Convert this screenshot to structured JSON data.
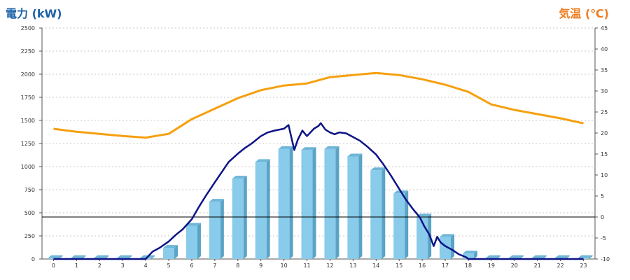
{
  "chart_data": {
    "type": "bar",
    "left_axis_title": "電力 (kW)",
    "right_axis_title": "気温 (℃)",
    "categories": [
      "0",
      "1",
      "2",
      "3",
      "4",
      "5",
      "6",
      "7",
      "8",
      "9",
      "10",
      "11",
      "12",
      "13",
      "14",
      "15",
      "16",
      "17",
      "18",
      "19",
      "20",
      "21",
      "22",
      "23"
    ],
    "ylim_left": [
      0,
      2500
    ],
    "yticks_left": [
      "0",
      "250",
      "500",
      "750",
      "1000",
      "1250",
      "1500",
      "1750",
      "2000",
      "2250",
      "2500"
    ],
    "ylim_right": [
      -10,
      45
    ],
    "yticks_right": [
      "-10",
      "-5",
      "0",
      "5",
      "10",
      "15",
      "20",
      "25",
      "30",
      "35",
      "40",
      "45"
    ],
    "grid": "horizontal dotted",
    "colors": {
      "bar_front": "#88cbea",
      "bar_side": "#5aa3c5",
      "bar_top": "#6fb6d8",
      "power_line": "#0d1486",
      "temperature_line": "#f5a00f",
      "left_title": "#1d62a7",
      "right_title": "#ee7d22",
      "zero_line": "#000000",
      "gridline": "#b8b8b8"
    },
    "series": [
      {
        "type": "bar",
        "axis": "left",
        "values": [
          10,
          10,
          10,
          10,
          10,
          120,
          360,
          620,
          870,
          1050,
          1190,
          1180,
          1190,
          1110,
          960,
          710,
          460,
          240,
          60,
          10,
          10,
          10,
          10,
          10
        ]
      },
      {
        "type": "line",
        "axis": "left",
        "x": [
          0,
          1,
          2,
          3,
          4,
          4.3,
          4.6,
          5,
          5.3,
          5.6,
          6,
          6.3,
          6.6,
          7,
          7.3,
          7.6,
          8,
          8.3,
          8.6,
          9,
          9.3,
          9.6,
          10,
          10.2,
          10.3,
          10.45,
          10.6,
          10.8,
          11,
          11.3,
          11.5,
          11.6,
          11.8,
          12,
          12.2,
          12.4,
          12.7,
          13,
          13.3,
          13.6,
          14,
          14.3,
          14.6,
          15,
          15.3,
          15.6,
          15.9,
          16.1,
          16.3,
          16.5,
          16.65,
          16.8,
          17,
          17.3,
          17.6,
          17.9,
          18,
          19,
          20,
          21,
          22,
          23
        ],
        "values": [
          0,
          0,
          0,
          0,
          0,
          80,
          120,
          190,
          260,
          320,
          430,
          560,
          680,
          830,
          940,
          1050,
          1140,
          1200,
          1250,
          1330,
          1370,
          1390,
          1410,
          1450,
          1340,
          1180,
          1290,
          1390,
          1330,
          1410,
          1440,
          1470,
          1400,
          1370,
          1350,
          1370,
          1360,
          1320,
          1280,
          1220,
          1130,
          1030,
          920,
          760,
          640,
          540,
          450,
          350,
          270,
          140,
          240,
          180,
          140,
          100,
          50,
          20,
          0,
          0,
          0,
          0,
          0,
          0
        ]
      },
      {
        "type": "line",
        "axis": "right",
        "x": [
          0,
          1,
          2,
          3,
          4,
          5,
          6,
          7,
          8,
          9,
          10,
          11,
          12,
          13,
          14,
          15,
          16,
          17,
          18,
          19,
          20,
          21,
          22,
          23
        ],
        "values": [
          21,
          20.3,
          19.8,
          19.3,
          18.9,
          19.8,
          23.3,
          25.8,
          28.3,
          30.2,
          31.3,
          31.8,
          33.3,
          33.8,
          34.3,
          33.8,
          32.8,
          31.5,
          29.8,
          26.8,
          25.5,
          24.5,
          23.5,
          22.3
        ]
      }
    ]
  }
}
